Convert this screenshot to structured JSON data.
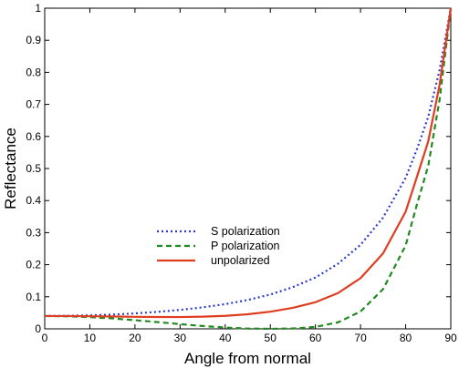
{
  "chart_data": {
    "type": "line",
    "title": "",
    "xlabel": "Angle from normal",
    "ylabel": "Reflectance",
    "xlim": [
      0,
      90
    ],
    "ylim": [
      0,
      1
    ],
    "xticks": [
      "0",
      "10",
      "20",
      "30",
      "40",
      "50",
      "60",
      "70",
      "80",
      "90"
    ],
    "yticks": [
      "0",
      "0.1",
      "0.2",
      "0.3",
      "0.4",
      "0.5",
      "0.6",
      "0.7",
      "0.8",
      "0.9",
      "1"
    ],
    "grid": false,
    "legend_position": "center-left",
    "x": [
      0,
      5,
      10,
      15,
      20,
      25,
      30,
      35,
      40,
      45,
      50,
      55,
      60,
      65,
      70,
      75,
      80,
      82.5,
      85,
      87.5,
      90
    ],
    "series": [
      {
        "name": "S polarization",
        "style": "dotted",
        "color": "#2b3bd0",
        "values": [
          0.04,
          0.0405,
          0.042,
          0.0445,
          0.048,
          0.053,
          0.059,
          0.067,
          0.077,
          0.09,
          0.107,
          0.13,
          0.16,
          0.203,
          0.262,
          0.347,
          0.471,
          0.56,
          0.661,
          0.806,
          1.0
        ]
      },
      {
        "name": "P polarization",
        "style": "dashed",
        "color": "#1f8a1f",
        "values": [
          0.04,
          0.039,
          0.0365,
          0.0325,
          0.027,
          0.021,
          0.0146,
          0.0088,
          0.004,
          0.0009,
          0.0001,
          0.0011,
          0.006,
          0.0202,
          0.054,
          0.124,
          0.26,
          0.388,
          0.508,
          0.713,
          1.0
        ]
      },
      {
        "name": "unpolarized",
        "style": "solid",
        "color": "#e03c1f",
        "values": [
          0.04,
          0.04,
          0.0393,
          0.0385,
          0.0375,
          0.037,
          0.0368,
          0.038,
          0.0405,
          0.0455,
          0.0535,
          0.0655,
          0.083,
          0.1115,
          0.158,
          0.2355,
          0.3655,
          0.474,
          0.5845,
          0.7595,
          1.0
        ]
      }
    ]
  }
}
